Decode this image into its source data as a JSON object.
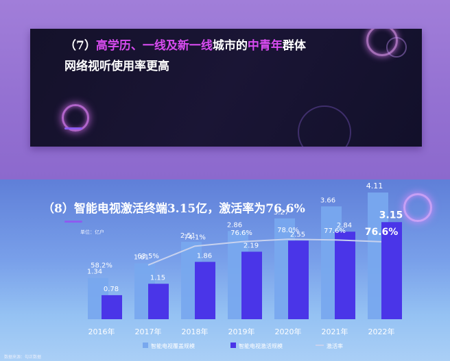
{
  "section7": {
    "headline_number": "（7）",
    "headline_part1": "高学历、一线及新一线",
    "headline_part2": "城市的",
    "headline_part3": "中青年",
    "headline_part4": "群体",
    "headline_line2": "网络视听使用率更高"
  },
  "section8": {
    "title": "（8）智能电视激活终端3.15亿，激活率为76.6%",
    "unit": "单位：亿户",
    "source": "数据来源：勾正数据"
  },
  "colors": {
    "bar_coverage": "#78a8ee",
    "bar_active": "#4a35e8",
    "rate_line": "#c8d2ee"
  },
  "chart_data": {
    "type": "bar",
    "categories": [
      "2016年",
      "2017年",
      "2018年",
      "2019年",
      "2020年",
      "2021年",
      "2022年"
    ],
    "series": [
      {
        "name": "智能电视覆盖规模",
        "values": [
          1.34,
          1.81,
          2.51,
          2.86,
          3.27,
          3.66,
          4.11
        ],
        "labels": [
          "1.34",
          "1.81",
          "2.51",
          "2.86",
          "3.27",
          "3.66",
          "4.11"
        ]
      },
      {
        "name": "智能电视激活规模",
        "values": [
          0.78,
          1.15,
          1.86,
          2.19,
          2.55,
          2.84,
          3.15
        ],
        "labels": [
          "0.78",
          "1.15",
          "1.86",
          "2.19",
          "2.55",
          "2.84",
          "3.15"
        ]
      }
    ],
    "line_series": {
      "name": "激活率",
      "values": [
        58.2,
        63.5,
        74.1,
        76.6,
        78.0,
        77.6,
        76.6
      ],
      "labels": [
        "58.2%",
        "63.5%",
        "74.1%",
        "76.6%",
        "78.0%",
        "77.6%",
        "76.6%"
      ]
    },
    "legend": [
      "智能电视覆盖规模",
      "智能电视激活规模",
      "激活率"
    ],
    "legend_position": "bottom",
    "ylim": [
      0,
      4.5
    ],
    "grid": false
  }
}
